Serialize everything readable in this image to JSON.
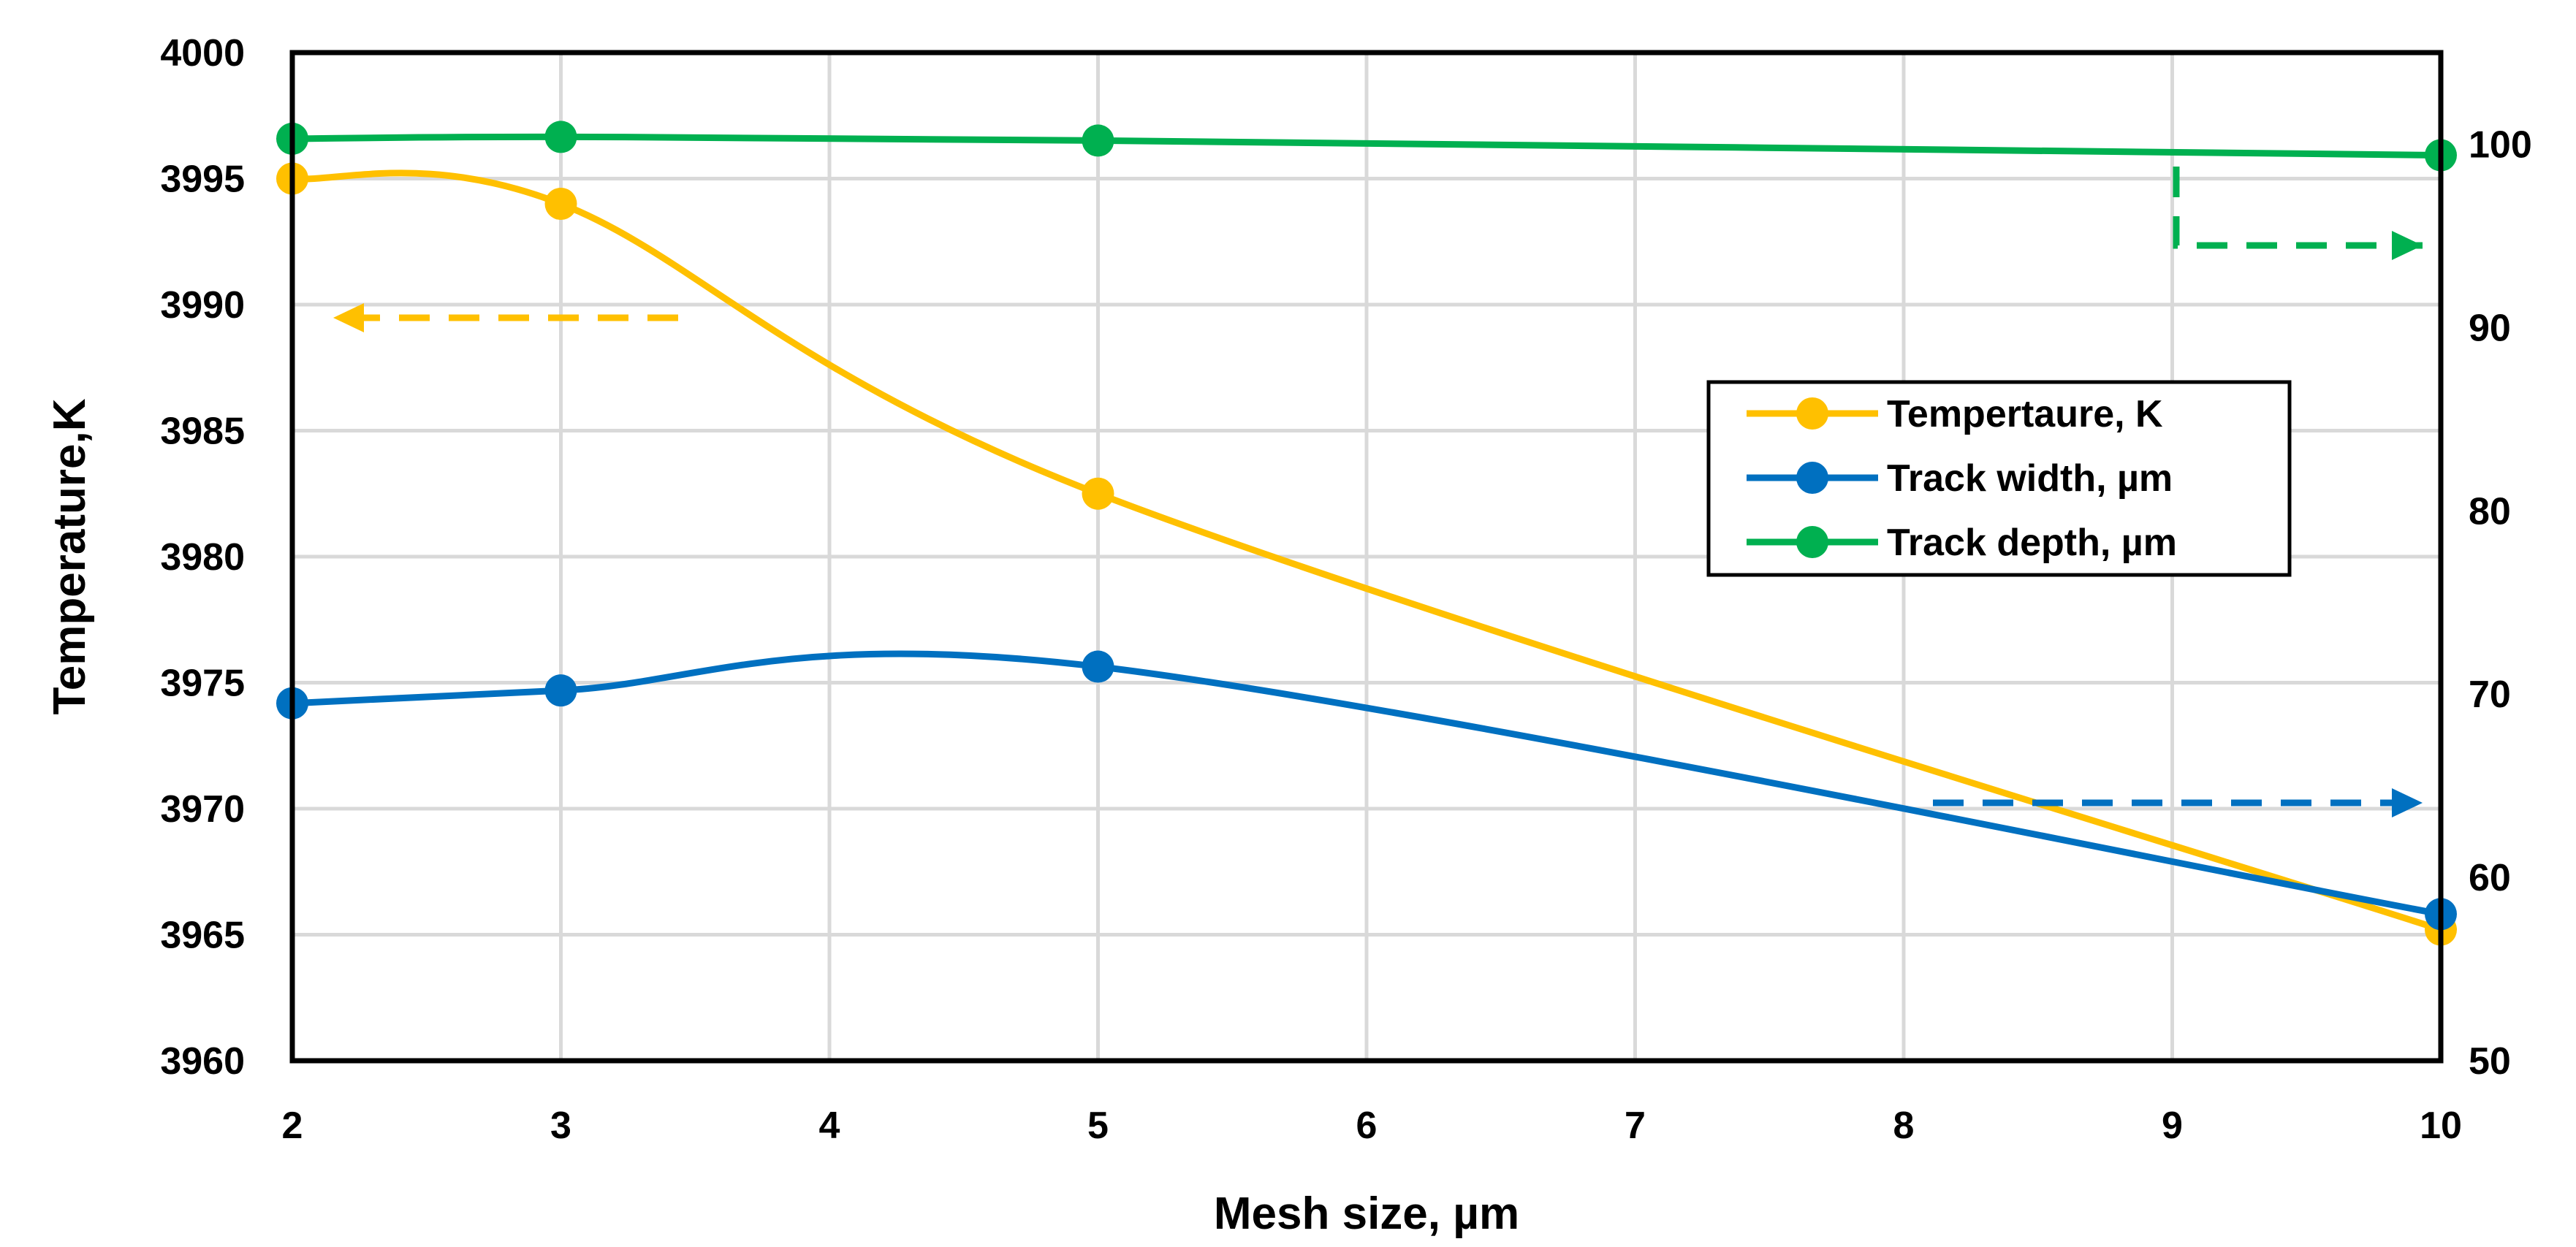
{
  "chart_data": {
    "type": "line",
    "xlabel": "Mesh size, µm",
    "ylabel": "Temperature,K",
    "y2label": "",
    "xlim": [
      2,
      10
    ],
    "ylim": [
      3960,
      4000
    ],
    "y2lim": [
      50,
      105
    ],
    "x_ticks": [
      "2",
      "3",
      "4",
      "5",
      "6",
      "7",
      "8",
      "9",
      "10"
    ],
    "y_ticks": [
      "3960",
      "3965",
      "3970",
      "3975",
      "3980",
      "3985",
      "3990",
      "3995",
      "4000"
    ],
    "y2_ticks": [
      "50",
      "60",
      "70",
      "80",
      "90",
      "100"
    ],
    "grid": true,
    "legend_position": "right-center",
    "series": [
      {
        "name": "Tempertaure, K",
        "axis": "left",
        "color": "#FFC000",
        "x": [
          2,
          3,
          5,
          10
        ],
        "y": [
          3995,
          3994,
          3982.5,
          3965.2
        ]
      },
      {
        "name": "Track width, µm",
        "axis": "right",
        "color": "#0070C0",
        "x": [
          2,
          3,
          5,
          10
        ],
        "y": [
          69.5,
          70.2,
          71.5,
          58
        ]
      },
      {
        "name": "Track depth, µm",
        "axis": "right",
        "color": "#00B050",
        "x": [
          2,
          3,
          5,
          10
        ],
        "y": [
          100.3,
          100.4,
          100.2,
          99.4
        ]
      }
    ],
    "annotations": [
      {
        "type": "dashed-arrow",
        "direction": "left",
        "series": "Tempertaure, K",
        "meaning": "read on left axis"
      },
      {
        "type": "dashed-arrow",
        "direction": "right",
        "series": "Track width, µm",
        "meaning": "read on right axis"
      },
      {
        "type": "dashed-arrow",
        "direction": "right",
        "series": "Track depth, µm",
        "meaning": "read on right axis"
      }
    ]
  }
}
